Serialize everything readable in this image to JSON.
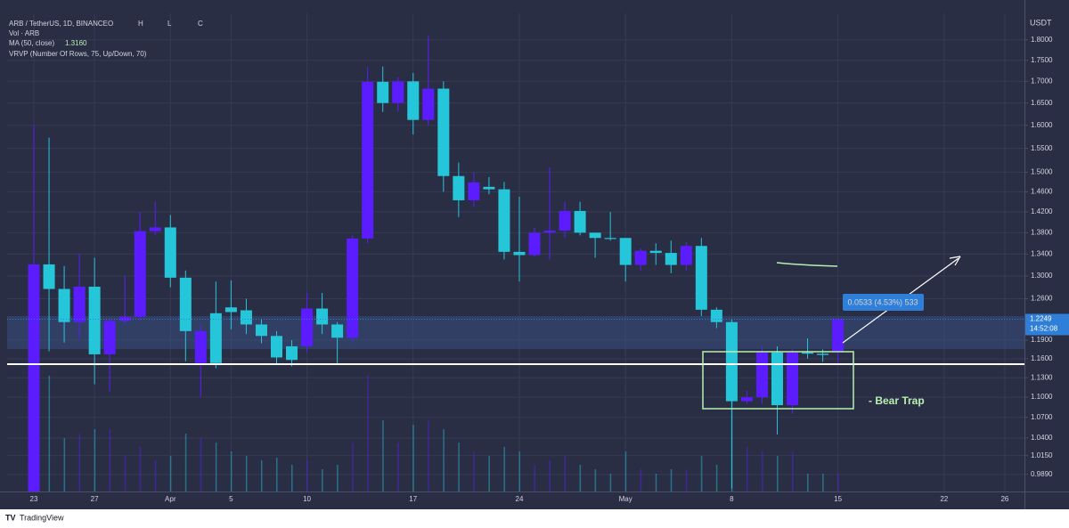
{
  "chart_data": {
    "type": "candlestick",
    "title": "ARB / TetherUS, 1D, BINANCE",
    "ohlc_labels": [
      "O",
      "H",
      "L",
      "C"
    ],
    "volume_label": "Vol · ARB",
    "ma_label": "MA (50, close)",
    "ma_value": 1.316,
    "ma_value_label": "1.3160",
    "vrvp_label": "VRVP (Number Of Rows, 75, Up/Down, 70)",
    "y_unit": "USDT",
    "last_price_time": "14:52:08",
    "measure_label": "0.0533 (4.53%) 533",
    "pattern_label": "- Bear Trap",
    "footer": "TradingView",
    "up_color": "#5b1cff",
    "down_color": "#26c6da",
    "log_scale": true,
    "grid": true,
    "categories": [
      "23",
      null,
      null,
      null,
      "27",
      null,
      null,
      null,
      null,
      "Apr",
      null,
      null,
      null,
      "5",
      null,
      null,
      null,
      null,
      "10",
      null,
      null,
      null,
      null,
      null,
      null,
      "17",
      null,
      null,
      null,
      null,
      null,
      null,
      "24",
      null,
      null,
      null,
      null,
      null,
      null,
      "May",
      null,
      null,
      null,
      null,
      null,
      null,
      "8",
      null,
      null,
      null,
      null,
      null,
      null,
      "15",
      null,
      null,
      null,
      null,
      null,
      null,
      "22",
      null,
      null,
      null,
      "26",
      null
    ],
    "open": [
      0.96,
      1.321,
      1.277,
      1.22,
      1.281,
      1.167,
      1.222,
      1.229,
      1.383,
      1.39,
      1.297,
      1.153,
      1.235,
      1.245,
      1.24,
      1.216,
      1.197,
      1.18,
      1.18,
      1.243,
      1.216,
      1.194,
      1.369,
      1.699,
      1.65,
      1.7,
      1.612,
      1.683,
      1.492,
      1.443,
      1.47,
      1.465,
      1.344,
      1.338,
      1.38,
      1.384,
      1.422,
      1.38,
      1.37,
      1.37,
      1.32,
      1.346,
      1.342,
      1.32,
      1.355,
      1.241,
      1.22,
      1.094,
      1.1,
      1.17,
      1.088,
      1.17,
      1.168,
      1.1716,
      null,
      null,
      null,
      null,
      null,
      null,
      null,
      null,
      null,
      null,
      null,
      null
    ],
    "high": [
      1.6,
      1.573,
      1.318,
      1.341,
      1.333,
      1.225,
      1.3,
      1.42,
      1.44,
      1.414,
      1.31,
      1.215,
      1.29,
      1.292,
      1.26,
      1.225,
      1.205,
      1.19,
      1.27,
      1.27,
      1.22,
      1.375,
      1.734,
      1.735,
      1.71,
      1.72,
      1.81,
      1.7,
      1.52,
      1.5,
      1.49,
      1.48,
      1.45,
      1.39,
      1.51,
      1.44,
      1.44,
      1.38,
      1.42,
      1.37,
      1.35,
      1.36,
      1.365,
      1.362,
      1.37,
      1.245,
      1.225,
      1.11,
      1.18,
      1.18,
      1.175,
      1.193,
      1.175,
      1.2249,
      null,
      null,
      null,
      null,
      null,
      null,
      null,
      null,
      null,
      null,
      null,
      null
    ],
    "low": [
      0.95,
      1.172,
      1.186,
      1.192,
      1.12,
      1.109,
      1.215,
      1.222,
      1.375,
      1.28,
      1.156,
      1.1,
      1.145,
      1.208,
      1.2,
      1.185,
      1.15,
      1.148,
      1.17,
      1.2,
      1.153,
      1.185,
      1.36,
      1.63,
      1.63,
      1.58,
      1.6,
      1.46,
      1.41,
      1.43,
      1.455,
      1.33,
      1.29,
      1.335,
      1.33,
      1.37,
      1.375,
      1.333,
      1.365,
      1.29,
      1.31,
      1.32,
      1.305,
      1.31,
      1.23,
      1.21,
      0.97,
      1.09,
      1.09,
      1.045,
      1.075,
      1.16,
      1.155,
      1.15,
      null,
      null,
      null,
      null,
      null,
      null,
      null,
      null,
      null,
      null,
      null,
      null
    ],
    "close": [
      1.321,
      1.277,
      1.22,
      1.281,
      1.167,
      1.222,
      1.229,
      1.383,
      1.39,
      1.297,
      1.205,
      1.205,
      1.153,
      1.237,
      1.216,
      1.197,
      1.162,
      1.158,
      1.243,
      1.216,
      1.194,
      1.369,
      1.699,
      1.65,
      1.7,
      1.612,
      1.683,
      1.492,
      1.443,
      1.479,
      1.465,
      1.344,
      1.338,
      1.38,
      1.384,
      1.422,
      1.38,
      1.37,
      1.368,
      1.32,
      1.346,
      1.342,
      1.32,
      1.355,
      1.241,
      1.22,
      1.094,
      1.1,
      1.17,
      1.088,
      1.17,
      1.168,
      1.166,
      1.2249,
      null,
      null,
      null,
      null,
      null,
      null,
      null,
      null,
      null,
      null,
      null,
      null
    ],
    "volume": [
      170,
      130,
      60,
      65,
      70,
      70,
      40,
      50,
      35,
      40,
      65,
      60,
      55,
      45,
      40,
      35,
      38,
      30,
      35,
      25,
      30,
      55,
      130,
      80,
      55,
      75,
      80,
      70,
      55,
      45,
      40,
      50,
      45,
      30,
      35,
      40,
      30,
      25,
      20,
      45,
      25,
      20,
      25,
      25,
      40,
      30,
      140,
      50,
      45,
      40,
      45,
      20,
      20,
      20,
      null,
      null,
      null,
      null,
      null,
      null,
      null,
      null,
      null,
      null,
      null,
      null
    ],
    "volume_lim": [
      0,
      200
    ],
    "ylim": [
      0.966,
      1.867
    ],
    "yticks": [
      {
        "value": 1.8,
        "label": "1.8000"
      },
      {
        "value": 1.75,
        "label": "1.7500"
      },
      {
        "value": 1.7,
        "label": "1.7000"
      },
      {
        "value": 1.65,
        "label": "1.6500"
      },
      {
        "value": 1.6,
        "label": "1.6000"
      },
      {
        "value": 1.55,
        "label": "1.5500"
      },
      {
        "value": 1.5,
        "label": "1.5000"
      },
      {
        "value": 1.46,
        "label": "1.4600"
      },
      {
        "value": 1.42,
        "label": "1.4200"
      },
      {
        "value": 1.38,
        "label": "1.3800"
      },
      {
        "value": 1.34,
        "label": "1.3400"
      },
      {
        "value": 1.3,
        "label": "1.3000"
      },
      {
        "value": 1.26,
        "label": "1.2600"
      },
      {
        "value": 1.19,
        "label": "1.1900"
      },
      {
        "value": 1.16,
        "label": "1.1600"
      },
      {
        "value": 1.13,
        "label": "1.1300"
      },
      {
        "value": 1.1,
        "label": "1.1000"
      },
      {
        "value": 1.07,
        "label": "1.0700"
      },
      {
        "value": 1.04,
        "label": "1.0400"
      },
      {
        "value": 1.015,
        "label": "1.0150"
      },
      {
        "value": 0.989,
        "label": "0.9890"
      }
    ]
  }
}
